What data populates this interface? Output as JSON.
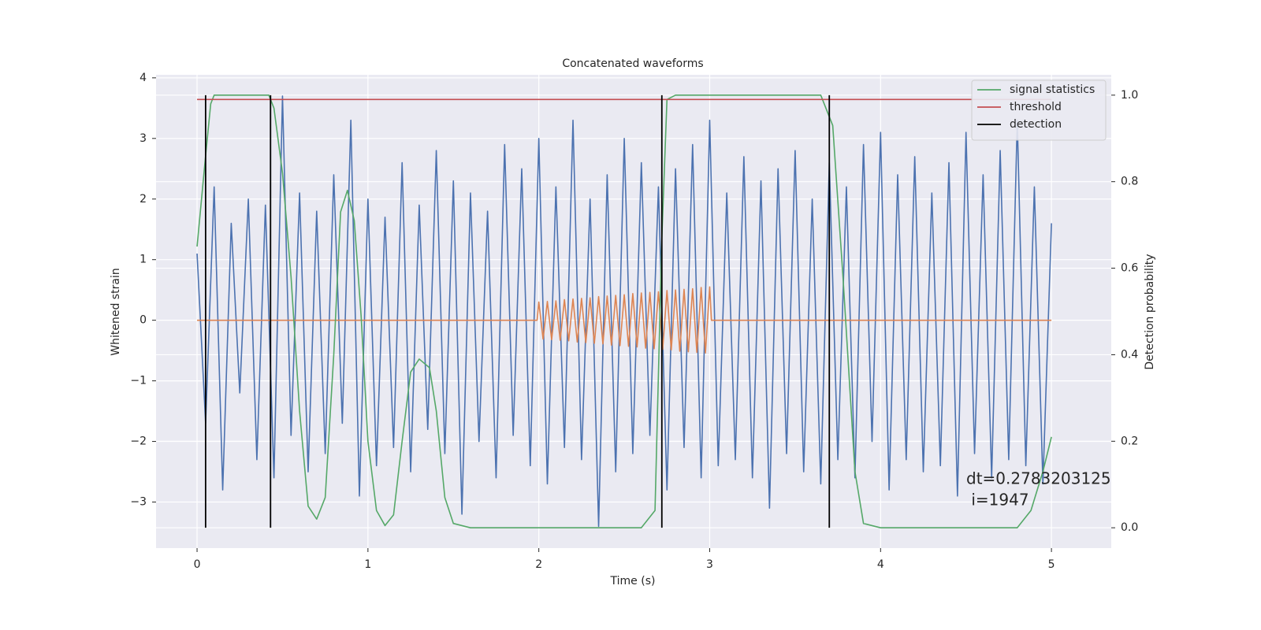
{
  "chart_data": {
    "type": "line",
    "title": "Concatenated waveforms",
    "xlabel": "Time (s)",
    "ylabel": "Whitened strain",
    "y2label": "Detection probability",
    "annotation": [
      "dt=0.2783203125",
      " i=1947"
    ],
    "xlim": [
      -0.24,
      5.35
    ],
    "ylim": [
      -3.76,
      4.05
    ],
    "y2lim": [
      -0.047,
      1.047
    ],
    "xticks": [
      0,
      1,
      2,
      3,
      4,
      5
    ],
    "yticks": [
      {
        "value": -3,
        "label": "−3"
      },
      {
        "value": -2,
        "label": "−2"
      },
      {
        "value": -1,
        "label": "−1"
      },
      0,
      1,
      2,
      3,
      4
    ],
    "y2ticks": [
      {
        "value": 0,
        "label": "0.0"
      },
      0.2,
      0.4,
      0.6,
      0.8,
      {
        "value": 1,
        "label": "1.0"
      }
    ],
    "grid": true,
    "legend_loc": "upper right",
    "series": [
      {
        "color": "#4c72b0",
        "x": [
          0,
          0.05,
          0.1,
          0.15,
          0.2,
          0.25,
          0.3,
          0.35,
          0.4,
          0.45,
          0.5,
          0.55,
          0.6,
          0.65,
          0.7,
          0.75,
          0.8,
          0.85,
          0.9,
          0.95,
          1,
          1.05,
          1.1,
          1.15,
          1.2,
          1.25,
          1.3,
          1.35,
          1.4,
          1.45,
          1.5,
          1.55,
          1.6,
          1.65,
          1.7,
          1.75,
          1.8,
          1.85,
          1.9,
          1.95,
          2,
          2.05,
          2.1,
          2.15,
          2.2,
          2.25,
          2.3,
          2.35,
          2.4,
          2.45,
          2.5,
          2.55,
          2.6,
          2.65,
          2.7,
          2.75,
          2.8,
          2.85,
          2.9,
          2.95,
          3,
          3.05,
          3.1,
          3.15,
          3.2,
          3.25,
          3.3,
          3.35,
          3.4,
          3.45,
          3.5,
          3.55,
          3.6,
          3.65,
          3.7,
          3.75,
          3.8,
          3.85,
          3.9,
          3.95,
          4,
          4.05,
          4.1,
          4.15,
          4.2,
          4.25,
          4.3,
          4.35,
          4.4,
          4.45,
          4.5,
          4.55,
          4.6,
          4.65,
          4.7,
          4.75,
          4.8,
          4.85,
          4.9,
          4.95,
          5
        ],
        "values": [
          1.1,
          -1.7,
          2.2,
          -2.8,
          1.6,
          -1.2,
          2.0,
          -2.3,
          1.9,
          -2.6,
          3.7,
          -1.9,
          2.1,
          -2.5,
          1.8,
          -2.2,
          2.4,
          -1.7,
          3.3,
          -2.9,
          2.0,
          -2.4,
          1.7,
          -2.1,
          2.6,
          -2.5,
          1.9,
          -1.8,
          2.8,
          -2.2,
          2.3,
          -3.2,
          2.1,
          -2.0,
          1.8,
          -2.6,
          2.9,
          -1.9,
          2.5,
          -2.4,
          3.0,
          -2.7,
          2.2,
          -2.1,
          3.3,
          -2.3,
          2.0,
          -3.4,
          2.4,
          -2.5,
          3.0,
          -2.2,
          2.6,
          -1.9,
          2.2,
          -2.8,
          2.5,
          -2.1,
          2.9,
          -2.6,
          3.3,
          -2.4,
          2.1,
          -2.3,
          2.7,
          -2.6,
          2.3,
          -3.1,
          2.5,
          -2.2,
          2.8,
          -2.5,
          2.0,
          -2.7,
          2.6,
          -2.3,
          2.2,
          -2.6,
          2.9,
          -2.0,
          3.1,
          -2.8,
          2.4,
          -2.3,
          2.7,
          -2.5,
          2.1,
          -2.4,
          2.6,
          -2.9,
          3.1,
          -2.2,
          2.4,
          -2.6,
          2.8,
          -2.3,
          3.3,
          -2.4,
          2.2,
          -2.7,
          1.6
        ]
      },
      {
        "color": "#dd8452",
        "x": [
          0,
          1.99,
          2,
          2.025,
          2.05,
          2.075,
          2.1,
          2.125,
          2.15,
          2.175,
          2.2,
          2.225,
          2.25,
          2.275,
          2.3,
          2.325,
          2.35,
          2.375,
          2.4,
          2.425,
          2.45,
          2.475,
          2.5,
          2.525,
          2.55,
          2.575,
          2.6,
          2.625,
          2.65,
          2.675,
          2.7,
          2.725,
          2.75,
          2.775,
          2.8,
          2.825,
          2.85,
          2.875,
          2.9,
          2.925,
          2.95,
          2.975,
          3,
          3.01,
          5
        ],
        "values": [
          0,
          0,
          0.3,
          -0.31,
          0.31,
          -0.32,
          0.32,
          -0.33,
          0.34,
          -0.34,
          0.35,
          -0.36,
          0.36,
          -0.37,
          0.37,
          -0.38,
          0.39,
          -0.39,
          0.4,
          -0.41,
          0.41,
          -0.42,
          0.42,
          -0.43,
          0.44,
          -0.44,
          0.45,
          -0.46,
          0.46,
          -0.47,
          0.47,
          -0.48,
          0.49,
          -0.49,
          0.5,
          -0.51,
          0.51,
          -0.52,
          0.52,
          -0.53,
          0.54,
          -0.54,
          0.55,
          0,
          0
        ]
      },
      {
        "name": "signal statistics",
        "color": "#55a868",
        "axis": "y2",
        "x": [
          0,
          0.05,
          0.08,
          0.1,
          0.42,
          0.45,
          0.5,
          0.55,
          0.6,
          0.65,
          0.7,
          0.75,
          0.8,
          0.84,
          0.88,
          0.92,
          0.96,
          1.0,
          1.05,
          1.1,
          1.15,
          1.2,
          1.25,
          1.3,
          1.36,
          1.4,
          1.45,
          1.5,
          1.6,
          2.6,
          2.68,
          2.72,
          2.75,
          2.8,
          3.65,
          3.72,
          3.78,
          3.85,
          3.9,
          4.0,
          4.8,
          4.88,
          4.95,
          5.0
        ],
        "values": [
          0.65,
          0.86,
          0.98,
          1.0,
          1.0,
          0.97,
          0.82,
          0.58,
          0.27,
          0.05,
          0.02,
          0.07,
          0.4,
          0.73,
          0.78,
          0.71,
          0.49,
          0.2,
          0.04,
          0.005,
          0.03,
          0.2,
          0.36,
          0.39,
          0.37,
          0.27,
          0.07,
          0.01,
          0,
          0,
          0.04,
          0.67,
          0.99,
          1.0,
          1.0,
          0.93,
          0.58,
          0.13,
          0.01,
          0,
          0,
          0.04,
          0.13,
          0.21
        ]
      },
      {
        "name": "threshold",
        "color": "#c44e52",
        "axis": "y2",
        "x": [
          0,
          5
        ],
        "values": [
          0.99,
          0.99
        ]
      },
      {
        "name": "detection",
        "color": "#000000",
        "axis": "y2",
        "vlines": true,
        "x": [
          0.05,
          0.43,
          2.72,
          3.7
        ],
        "span": [
          0,
          1
        ]
      }
    ]
  }
}
